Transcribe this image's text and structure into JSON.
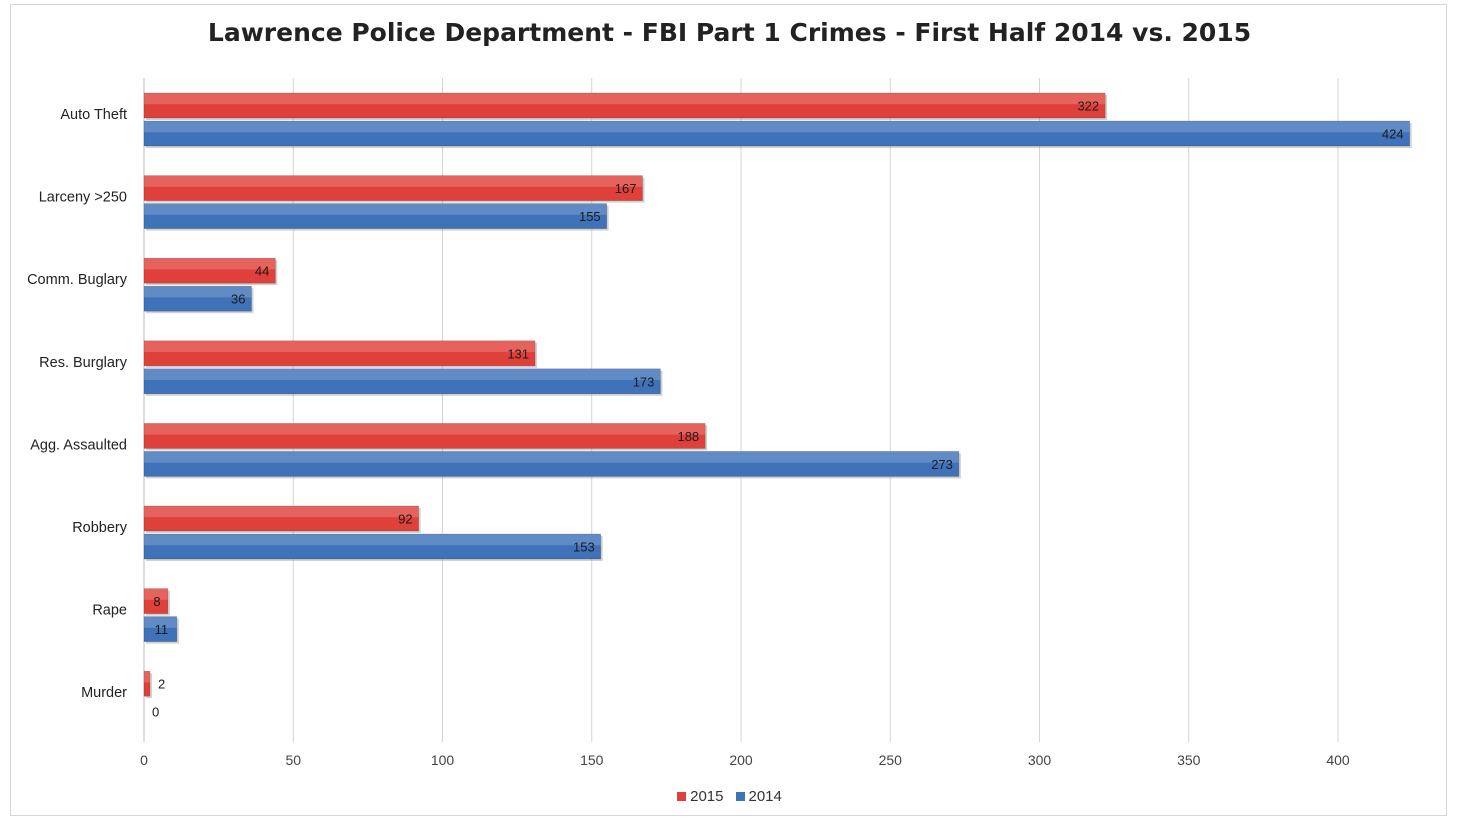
{
  "chart_data": {
    "type": "bar",
    "orientation": "horizontal",
    "title": "Lawrence Police Department - FBI Part 1 Crimes - First Half 2014 vs. 2015",
    "xlabel": "",
    "ylabel": "",
    "categories": [
      "Auto Theft",
      "Larceny >250",
      "Comm. Buglary",
      "Res. Burglary",
      "Agg. Assaulted",
      "Robbery",
      "Rape",
      "Murder"
    ],
    "series": [
      {
        "name": "2015",
        "color": "#e0403a",
        "values": [
          322,
          167,
          44,
          131,
          188,
          92,
          8,
          2
        ]
      },
      {
        "name": "2014",
        "color": "#3f72b9",
        "values": [
          424,
          155,
          36,
          173,
          273,
          153,
          11,
          0
        ]
      }
    ],
    "xlim": [
      0,
      425
    ],
    "xticks": [
      "0",
      "50",
      "100",
      "150",
      "200",
      "250",
      "300",
      "350",
      "400"
    ],
    "grid": true,
    "legend_position": "bottom"
  }
}
